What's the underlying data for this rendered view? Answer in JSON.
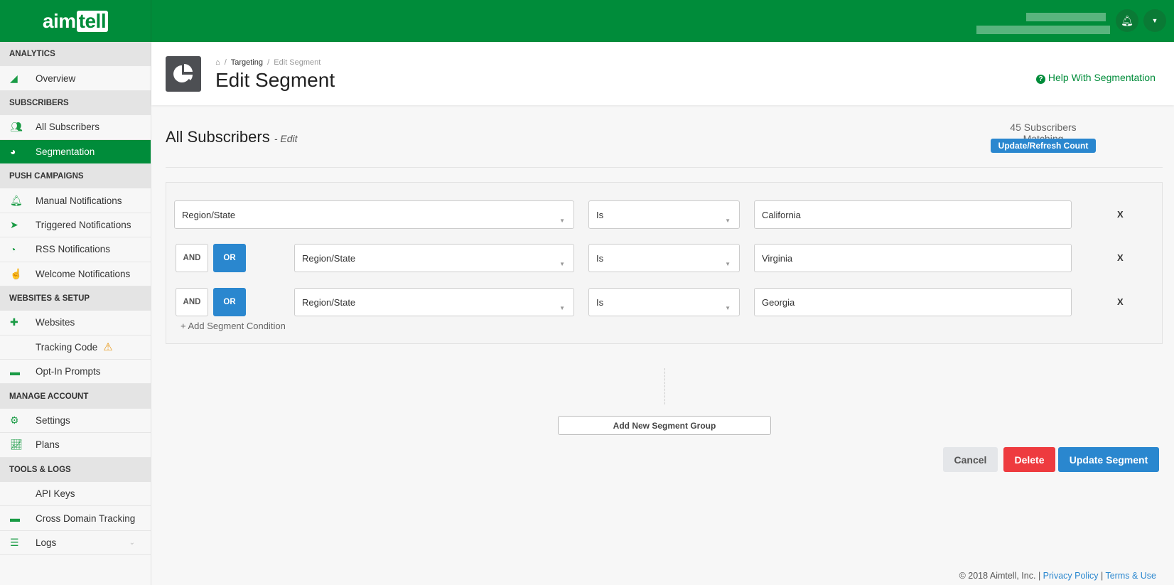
{
  "brand": {
    "logo_text_a": "aim",
    "logo_text_b": "tell",
    "color": "#008c3a"
  },
  "topbar": {
    "notifications_icon": "bell-icon",
    "menu_icon": "caret-down-icon"
  },
  "sidebar": {
    "sections": [
      {
        "title": "ANALYTICS",
        "items": [
          {
            "label": "Overview",
            "icon": "area-chart-icon"
          }
        ]
      },
      {
        "title": "SUBSCRIBERS",
        "items": [
          {
            "label": "All Subscribers",
            "icon": "users-icon"
          },
          {
            "label": "Segmentation",
            "icon": "pie-chart-icon",
            "active": true
          }
        ]
      },
      {
        "title": "PUSH CAMPAIGNS",
        "items": [
          {
            "label": "Manual Notifications",
            "icon": "bell-icon"
          },
          {
            "label": "Triggered Notifications",
            "icon": "paper-plane-icon"
          },
          {
            "label": "RSS Notifications",
            "icon": "rss-icon"
          },
          {
            "label": "Welcome Notifications",
            "icon": "hand-icon"
          }
        ]
      },
      {
        "title": "WEBSITES & SETUP",
        "items": [
          {
            "label": "Websites",
            "icon": "puzzle-icon"
          },
          {
            "label": "Tracking Code",
            "icon": "code-icon",
            "warning": true
          },
          {
            "label": "Opt-In Prompts",
            "icon": "window-icon"
          }
        ]
      },
      {
        "title": "MANAGE ACCOUNT",
        "items": [
          {
            "label": "Settings",
            "icon": "gears-icon"
          },
          {
            "label": "Plans",
            "icon": "line-chart-icon"
          }
        ]
      },
      {
        "title": "TOOLS & LOGS",
        "items": [
          {
            "label": "API Keys",
            "icon": "code-icon"
          },
          {
            "label": "Cross Domain Tracking",
            "icon": "window-icon"
          },
          {
            "label": "Logs",
            "icon": "list-icon",
            "expandable": true
          }
        ]
      }
    ]
  },
  "page": {
    "breadcrumb": [
      "Targeting",
      "Edit Segment"
    ],
    "title": "Edit Segment",
    "help_link": "Help With Segmentation"
  },
  "segment": {
    "name": "All Subscribers",
    "edit_label": "- Edit",
    "matching": "45 Subscribers Matching",
    "refresh_button": "Update/Refresh Count",
    "conditions": [
      {
        "field": "Region/State",
        "operator": "Is",
        "value": "California"
      },
      {
        "connector": "OR",
        "field": "Region/State",
        "operator": "Is",
        "value": "Virginia"
      },
      {
        "connector": "OR",
        "field": "Region/State",
        "operator": "Is",
        "value": "Georgia"
      }
    ],
    "and_label": "AND",
    "or_label": "OR",
    "remove_label": "X",
    "add_condition": "+ Add Segment Condition",
    "add_group": "Add New Segment Group"
  },
  "actions": {
    "cancel": "Cancel",
    "delete": "Delete",
    "update": "Update Segment"
  },
  "footer": {
    "copyright": "© 2018 Aimtell, Inc.",
    "sep": "|",
    "privacy": "Privacy Policy",
    "terms": "Terms & Use"
  }
}
